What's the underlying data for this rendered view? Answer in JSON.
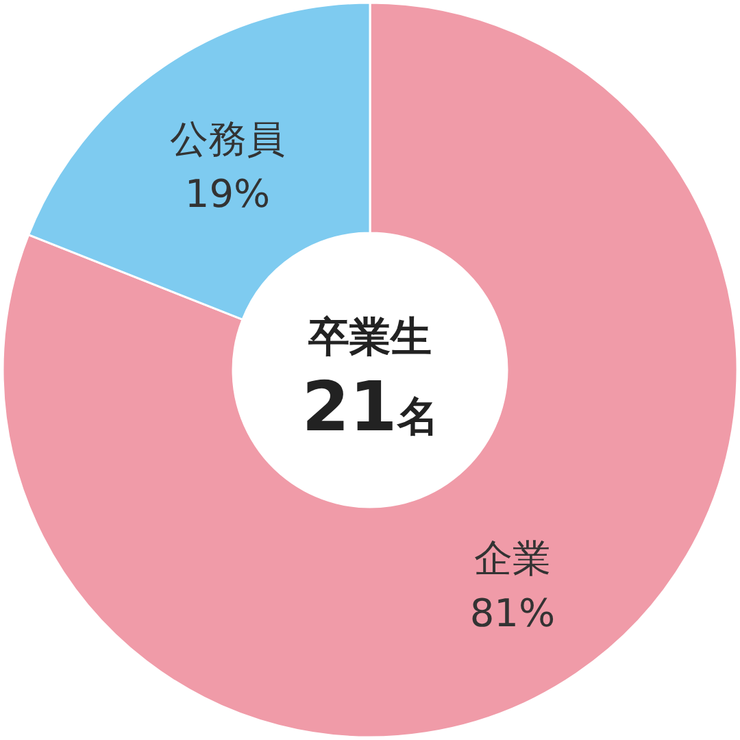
{
  "chart_data": {
    "type": "donut",
    "categories": [
      "企業",
      "公務員"
    ],
    "values": [
      81,
      19
    ],
    "colors": [
      "#f09ba8",
      "#7ecbf0"
    ],
    "value_labels": [
      "81%",
      "19%"
    ],
    "annotations": [
      "卒業生",
      "21名"
    ]
  }
}
